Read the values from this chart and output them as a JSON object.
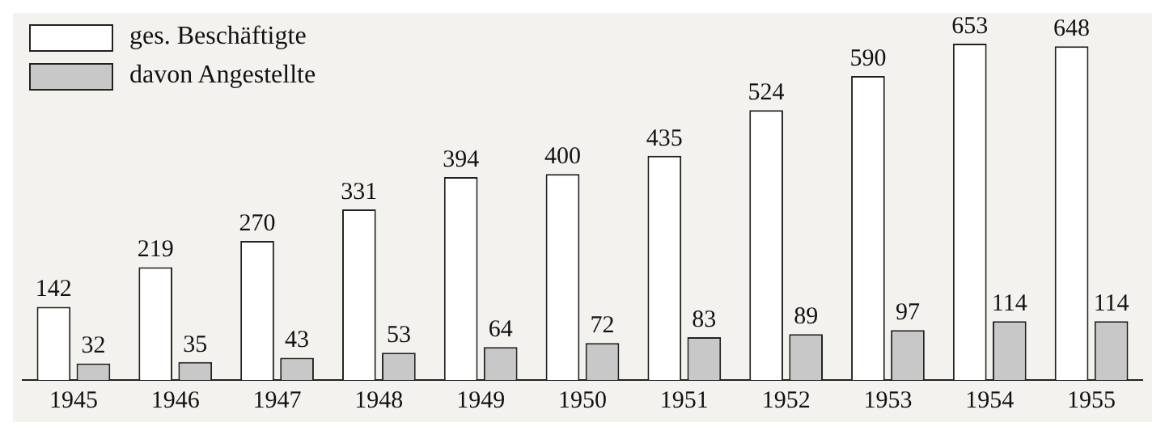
{
  "chart_data": {
    "type": "bar",
    "categories": [
      "1945",
      "1946",
      "1947",
      "1948",
      "1949",
      "1950",
      "1951",
      "1952",
      "1953",
      "1954",
      "1955"
    ],
    "series": [
      {
        "name": "ges. Beschäftigte",
        "color": "#ffffff",
        "values": [
          142,
          219,
          270,
          331,
          394,
          400,
          435,
          524,
          590,
          653,
          648
        ]
      },
      {
        "name": "davon Angestellte",
        "color": "#c8c8c8",
        "values": [
          32,
          35,
          43,
          53,
          64,
          72,
          83,
          89,
          97,
          114,
          114
        ]
      }
    ],
    "data_labels": true,
    "legend": "top left",
    "grid": false
  }
}
